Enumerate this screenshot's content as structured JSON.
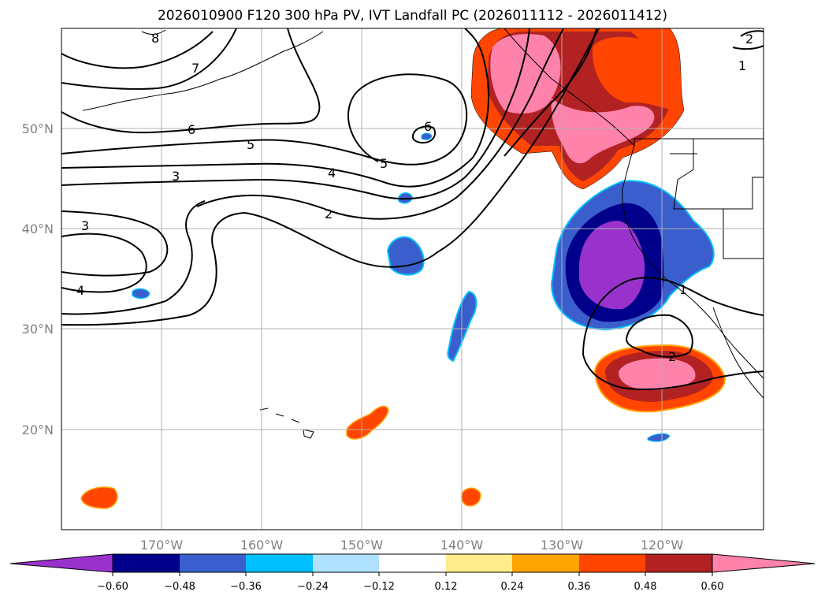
{
  "title": "2026010900 F120 300 hPa PV, IVT Landfall PC (2026011112 - 2026011412)",
  "map": {
    "lat_labels": [
      "50°N",
      "40°N",
      "30°N",
      "20°N"
    ],
    "lon_labels": [
      "170°W",
      "160°W",
      "150°W",
      "140°W",
      "130°W",
      "120°W"
    ],
    "pv_contour_labels": [
      "8",
      "7",
      "6",
      "5",
      "3",
      "4",
      "2",
      "3",
      "4",
      "5",
      "6",
      "1",
      "1",
      "2",
      "2"
    ]
  },
  "colorbar": {
    "tick_labels": [
      "−0.60",
      "−0.48",
      "−0.36",
      "−0.24",
      "−0.12",
      "0.12",
      "0.24",
      "0.36",
      "0.48",
      "0.60"
    ],
    "colors": [
      "#9932cc",
      "#00008b",
      "#3a5fcd",
      "#00bfff",
      "#b0e2ff",
      "#ffffff",
      "#ffec8b",
      "#ffa500",
      "#ff4500",
      "#b22222",
      "#ff82ab"
    ]
  }
}
